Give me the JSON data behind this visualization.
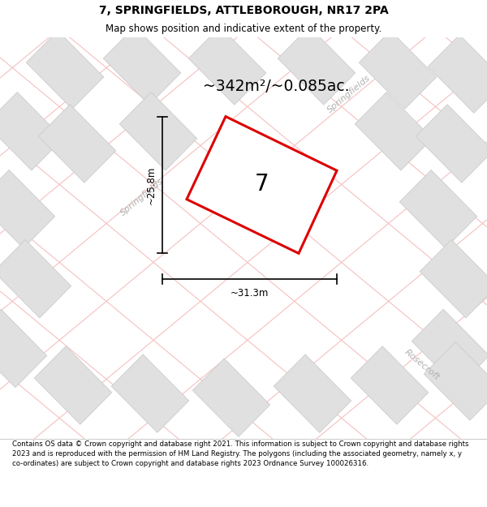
{
  "title_line1": "7, SPRINGFIELDS, ATTLEBOROUGH, NR17 2PA",
  "title_line2": "Map shows position and indicative extent of the property.",
  "area_text": "~342m²/~0.085ac.",
  "plot_number": "7",
  "dim_vertical": "~25.8m",
  "dim_horizontal": "~31.3m",
  "footer_text": "Contains OS data © Crown copyright and database right 2021. This information is subject to Crown copyright and database rights 2023 and is reproduced with the permission of HM Land Registry. The polygons (including the associated geometry, namely x, y co-ordinates) are subject to Crown copyright and database rights 2023 Ordnance Survey 100026316.",
  "bg_color": "#ffffff",
  "map_bg": "#f8f8f8",
  "plot_fill": "#e8e8e8",
  "plot_edge": "#dd0000",
  "road_color": "#f5c0c0",
  "road_color2": "#e8a8a8",
  "block_fill": "#e0e0e0",
  "block_edge": "#cccccc",
  "label_color": "#b0b0b0",
  "title_fontsize": 10,
  "subtitle_fontsize": 8.5,
  "area_fontsize": 14,
  "plot_label_fontsize": 18,
  "dim_fontsize": 8.5,
  "footer_fontsize": 6.2
}
